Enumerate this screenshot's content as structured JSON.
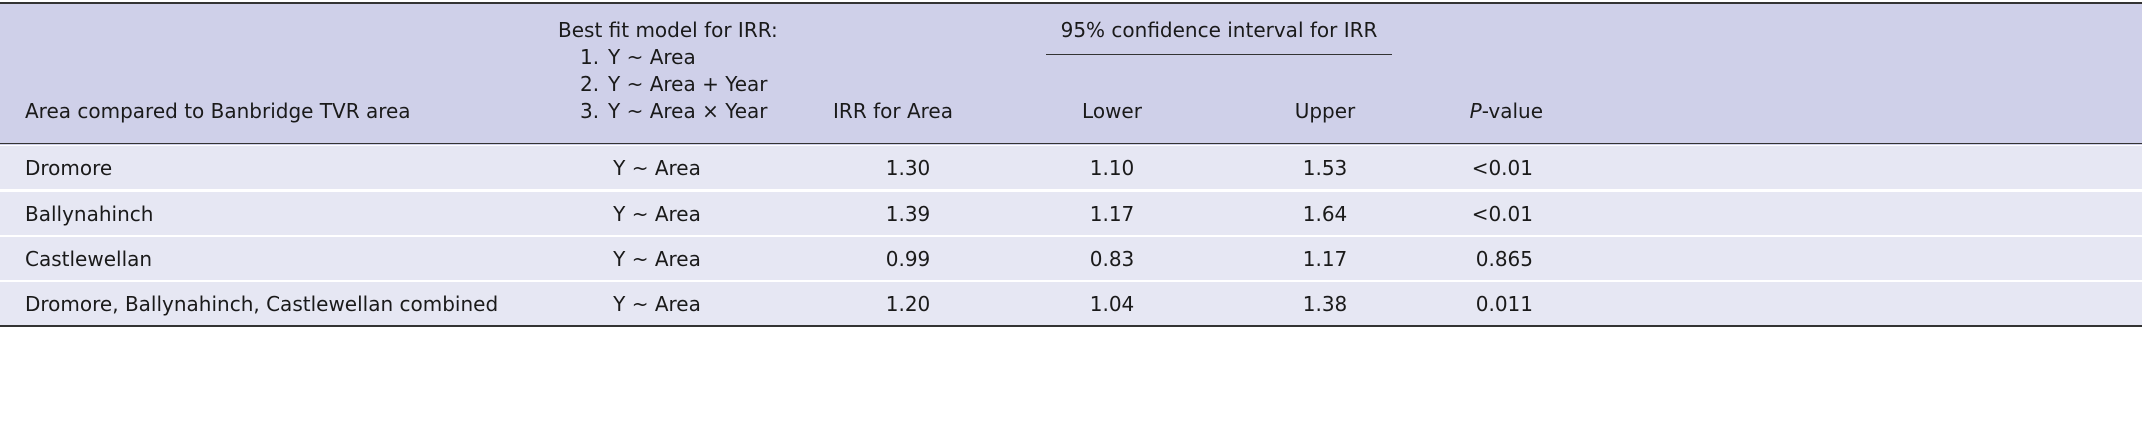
{
  "table": {
    "header": {
      "area": "Area compared to Banbridge TVR area",
      "model_title": "Best fit model for IRR:",
      "model_options": [
        {
          "number": "1.",
          "text": "Y ~ Area"
        },
        {
          "number": "2.",
          "text": "Y ~ Area + Year"
        },
        {
          "number": "3.",
          "text": "Y ~ Area × Year"
        }
      ],
      "irr": "IRR for Area",
      "ci": "95% confidence interval for IRR",
      "lower": "Lower",
      "upper": "Upper",
      "p_italic": "P",
      "p_rest": "-value"
    },
    "rows": [
      [
        "Dromore",
        "Y ~ Area",
        "1.30",
        "1.10",
        "1.53",
        "<0.01"
      ],
      [
        "Ballynahinch",
        "Y ~ Area",
        "1.39",
        "1.17",
        "1.64",
        "<0.01"
      ],
      [
        "Castlewellan",
        "Y ~ Area",
        "0.99",
        "0.83",
        "1.17",
        "0.865"
      ],
      [
        "Dromore, Ballynahinch, Castlewellan combined",
        "Y ~ Area",
        "1.20",
        "1.04",
        "1.38",
        "0.011"
      ]
    ]
  }
}
